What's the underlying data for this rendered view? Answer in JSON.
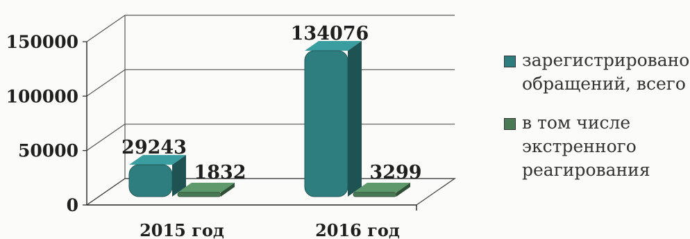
{
  "chart_data": {
    "type": "bar",
    "title": "",
    "xlabel": "",
    "ylabel": "",
    "categories": [
      "2015 год",
      "2016 год"
    ],
    "series": [
      {
        "name": "зарегистрировано обращений, всего",
        "values": [
          29243,
          134076
        ],
        "color": "#2e7e80"
      },
      {
        "name": "в том числе экстренного реагирования",
        "values": [
          1832,
          3299
        ],
        "color": "#4a7a55"
      }
    ],
    "ylim": [
      0,
      150000
    ],
    "yticks": [
      0,
      50000,
      100000,
      150000
    ],
    "ytick_labels": [
      "0",
      "50000",
      "100000",
      "150000"
    ],
    "data_labels": [
      [
        "29243",
        "134076"
      ],
      [
        "1832",
        "3299"
      ]
    ],
    "grid": true,
    "legend_position": "right",
    "three_d": true
  }
}
